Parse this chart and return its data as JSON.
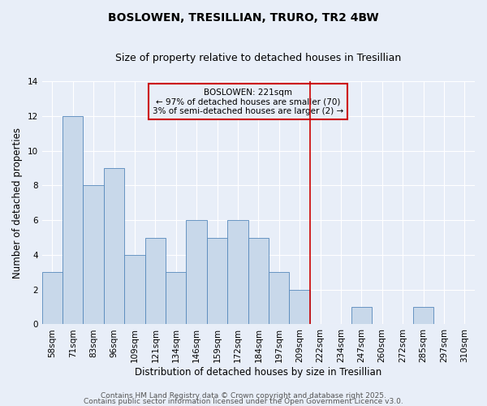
{
  "title": "BOSLOWEN, TRESILLIAN, TRURO, TR2 4BW",
  "subtitle": "Size of property relative to detached houses in Tresillian",
  "xlabel": "Distribution of detached houses by size in Tresillian",
  "ylabel": "Number of detached properties",
  "categories": [
    "58sqm",
    "71sqm",
    "83sqm",
    "96sqm",
    "109sqm",
    "121sqm",
    "134sqm",
    "146sqm",
    "159sqm",
    "172sqm",
    "184sqm",
    "197sqm",
    "209sqm",
    "222sqm",
    "234sqm",
    "247sqm",
    "260sqm",
    "272sqm",
    "285sqm",
    "297sqm",
    "310sqm"
  ],
  "values": [
    3,
    12,
    8,
    9,
    4,
    5,
    3,
    6,
    5,
    6,
    5,
    3,
    2,
    0,
    0,
    1,
    0,
    0,
    1,
    0,
    0
  ],
  "bar_color": "#c8d8ea",
  "bar_edge_color": "#5588bb",
  "background_color": "#e8eef8",
  "grid_color": "#ffffff",
  "vline_color": "#cc0000",
  "annotation_title": "BOSLOWEN: 221sqm",
  "annotation_line1": "← 97% of detached houses are smaller (70)",
  "annotation_line2": "3% of semi-detached houses are larger (2) →",
  "ylim": [
    0,
    14
  ],
  "yticks": [
    0,
    2,
    4,
    6,
    8,
    10,
    12,
    14
  ],
  "footer_line1": "Contains HM Land Registry data © Crown copyright and database right 2025.",
  "footer_line2": "Contains public sector information licensed under the Open Government Licence v3.0.",
  "title_fontsize": 10,
  "subtitle_fontsize": 9,
  "label_fontsize": 8.5,
  "tick_fontsize": 7.5,
  "footer_fontsize": 6.5,
  "ann_fontsize": 7.5
}
